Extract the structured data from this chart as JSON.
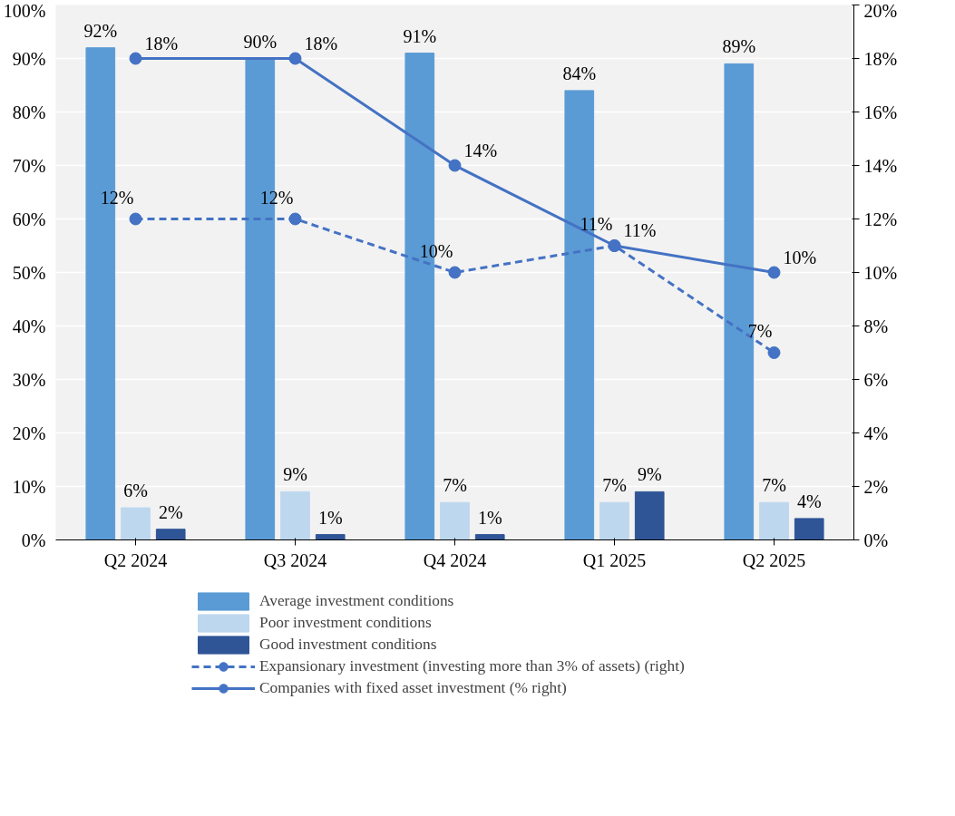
{
  "chart_data": {
    "type": "bar",
    "categories": [
      "Q2 2024",
      "Q3 2024",
      "Q4 2024",
      "Q1 2025",
      "Q2 2025"
    ],
    "series": [
      {
        "name": "Average investment conditions",
        "color": "#5b9bd5",
        "values": [
          92,
          90,
          91,
          84,
          89
        ],
        "value_labels": [
          "92%",
          "90%",
          "91%",
          "84%",
          "89%"
        ]
      },
      {
        "name": "Poor investment conditions",
        "color": "#bdd7ee",
        "values": [
          6,
          9,
          7,
          7,
          7
        ],
        "value_labels": [
          "6%",
          "9%",
          "7%",
          "7%",
          "7%"
        ]
      },
      {
        "name": "Good investment conditions",
        "color": "#2f5597",
        "values": [
          2,
          1,
          1,
          9,
          4
        ],
        "value_labels": [
          "2%",
          "1%",
          "1%",
          "9%",
          "4%"
        ]
      },
      {
        "name": "Expansionary investment (investing more than 3% of assets) (right)",
        "type": "line",
        "axis": "y2",
        "color": "#4472c4",
        "line_style": "dashed",
        "marker": "circle",
        "values": [
          12,
          12,
          10,
          11,
          7
        ],
        "value_labels": [
          "12%",
          "12%",
          "10%",
          "11%",
          "7%"
        ]
      },
      {
        "name": "Companies with fixed asset investment (% right)",
        "type": "line",
        "axis": "y2",
        "color": "#4472c4",
        "line_style": "solid",
        "marker": "circle",
        "values": [
          18,
          18,
          14,
          11,
          10
        ],
        "value_labels": [
          "18%",
          "18%",
          "14%",
          "11%",
          "10%"
        ]
      }
    ],
    "ylim": [
      0,
      100
    ],
    "yticks": [
      {
        "value": 0,
        "label": "0%"
      },
      {
        "value": 10,
        "label": "10%"
      },
      {
        "value": 20,
        "label": "20%"
      },
      {
        "value": 30,
        "label": "30%"
      },
      {
        "value": 40,
        "label": "40%"
      },
      {
        "value": 50,
        "label": "50%"
      },
      {
        "value": 60,
        "label": "60%"
      },
      {
        "value": 70,
        "label": "70%"
      },
      {
        "value": 80,
        "label": "80%"
      },
      {
        "value": 90,
        "label": "90%"
      },
      {
        "value": 100,
        "label": "100%"
      }
    ],
    "y2lim": [
      0,
      20
    ],
    "y2ticks": [
      {
        "value": 0,
        "label": "0%"
      },
      {
        "value": 2,
        "label": "2%"
      },
      {
        "value": 4,
        "label": "4%"
      },
      {
        "value": 6,
        "label": "6%"
      },
      {
        "value": 8,
        "label": "8%"
      },
      {
        "value": 10,
        "label": "10%"
      },
      {
        "value": 12,
        "label": "12%"
      },
      {
        "value": 14,
        "label": "14%"
      },
      {
        "value": 16,
        "label": "16%"
      },
      {
        "value": 18,
        "label": "18%"
      },
      {
        "value": 20,
        "label": "20%"
      }
    ],
    "grid": "y",
    "legend": "bottom"
  }
}
